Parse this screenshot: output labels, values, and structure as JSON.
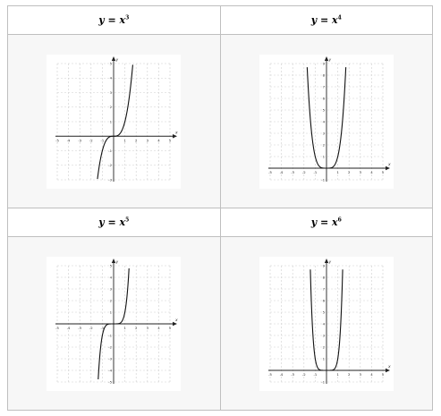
{
  "chart_data": [
    {
      "type": "line",
      "title": "y = x^3",
      "title_base": "y = x",
      "title_exp": "3",
      "exponent": 3,
      "xlim": [
        -5,
        5
      ],
      "ylim": [
        -3,
        5
      ],
      "xticks": [
        "-5",
        "-4",
        "-3",
        "-2",
        "-1",
        "",
        "1",
        "2",
        "3",
        "4",
        "5"
      ],
      "yticks": [
        "-3",
        "-2",
        "-1",
        "",
        "1",
        "2",
        "3",
        "4",
        "5"
      ],
      "xlabel": "x",
      "ylabel": "y",
      "grid": true,
      "series": [
        {
          "x": [
            -1.44,
            -1,
            -0.5,
            0,
            0.5,
            1,
            1.71
          ],
          "y": [
            -3,
            -1,
            -0.125,
            0,
            0.125,
            1,
            5
          ]
        }
      ]
    },
    {
      "type": "line",
      "title": "y = x^4",
      "title_base": "y = x",
      "title_exp": "4",
      "exponent": 4,
      "xlim": [
        -5,
        5
      ],
      "ylim": [
        -1,
        9
      ],
      "xticks": [
        "-5",
        "-4",
        "-3",
        "-2",
        "-1",
        "",
        "1",
        "2",
        "3",
        "4",
        "5"
      ],
      "yticks": [
        "-1",
        "",
        "1",
        "2",
        "3",
        "4",
        "5",
        "6",
        "7",
        "8",
        "9"
      ],
      "xlabel": "x",
      "ylabel": "y",
      "grid": true,
      "series": [
        {
          "x": [
            -1.73,
            -1.5,
            -1,
            -0.5,
            0,
            0.5,
            1,
            1.5,
            1.73
          ],
          "y": [
            9,
            5.06,
            1,
            0.06,
            0,
            0.06,
            1,
            5.06,
            9
          ]
        }
      ]
    },
    {
      "type": "line",
      "title": "y = x^5",
      "title_base": "y = x",
      "title_exp": "5",
      "exponent": 5,
      "xlim": [
        -5,
        5
      ],
      "ylim": [
        -5,
        5
      ],
      "xticks": [
        "-5",
        "-4",
        "-3",
        "-2",
        "-1",
        "",
        "1",
        "2",
        "3",
        "4",
        "5"
      ],
      "yticks": [
        "-5",
        "-4",
        "-3",
        "-2",
        "-1",
        "",
        "1",
        "2",
        "3",
        "4",
        "5"
      ],
      "xlabel": "x",
      "ylabel": "y",
      "grid": true,
      "series": [
        {
          "x": [
            -1.25,
            -1,
            -0.5,
            0,
            0.5,
            1,
            1.38
          ],
          "y": [
            -3,
            -1,
            -0.03,
            0,
            0.03,
            1,
            5
          ]
        }
      ]
    },
    {
      "type": "line",
      "title": "y = x^6",
      "title_base": "y = x",
      "title_exp": "6",
      "exponent": 6,
      "xlim": [
        -5,
        5
      ],
      "ylim": [
        -1,
        9
      ],
      "xticks": [
        "-5",
        "-4",
        "-3",
        "-2",
        "-1",
        "",
        "1",
        "2",
        "3",
        "4",
        "5"
      ],
      "yticks": [
        "-1",
        "",
        "1",
        "2",
        "3",
        "4",
        "5",
        "6",
        "7",
        "8",
        "9"
      ],
      "xlabel": "x",
      "ylabel": "y",
      "grid": true,
      "series": [
        {
          "x": [
            -1.44,
            -1,
            -0.5,
            0,
            0.5,
            1,
            1.44
          ],
          "y": [
            9,
            1,
            0.02,
            0,
            0.02,
            1,
            9
          ]
        }
      ]
    }
  ]
}
